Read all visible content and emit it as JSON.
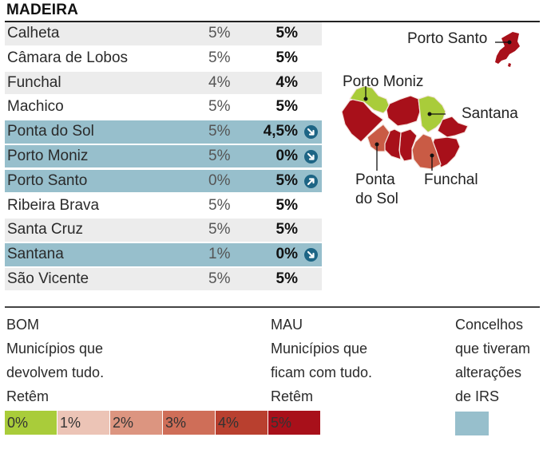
{
  "title": "MADEIRA",
  "rows": [
    {
      "name": "Calheta",
      "old": "5%",
      "new": "5%",
      "changed": false,
      "arrow": null
    },
    {
      "name": "Câmara de Lobos",
      "old": "5%",
      "new": "5%",
      "changed": false,
      "arrow": null
    },
    {
      "name": "Funchal",
      "old": "4%",
      "new": "4%",
      "changed": false,
      "arrow": null
    },
    {
      "name": "Machico",
      "old": "5%",
      "new": "5%",
      "changed": false,
      "arrow": null
    },
    {
      "name": "Ponta do Sol",
      "old": "5%",
      "new": "4,5%",
      "changed": true,
      "arrow": "down"
    },
    {
      "name": "Porto Moniz",
      "old": "5%",
      "new": "0%",
      "changed": true,
      "arrow": "down"
    },
    {
      "name": "Porto Santo",
      "old": "0%",
      "new": "5%",
      "changed": true,
      "arrow": "up"
    },
    {
      "name": "Ribeira Brava",
      "old": "5%",
      "new": "5%",
      "changed": false,
      "arrow": null
    },
    {
      "name": "Santa Cruz",
      "old": "5%",
      "new": "5%",
      "changed": false,
      "arrow": null
    },
    {
      "name": "Santana",
      "old": "1%",
      "new": "0%",
      "changed": true,
      "arrow": "down"
    },
    {
      "name": "São Vicente",
      "old": "5%",
      "new": "5%",
      "changed": false,
      "arrow": null
    }
  ],
  "map": {
    "labels": {
      "porto_santo": "Porto Santo",
      "porto_moniz": "Porto Moniz",
      "santana": "Santana",
      "ponta_do_sol_1": "Ponta",
      "ponta_do_sol_2": "do Sol",
      "funchal": "Funchal"
    }
  },
  "legend": {
    "bom": {
      "heading": "BOM",
      "line1": "Municípios que",
      "line2": "devolvem tudo.",
      "line3": "Retêm"
    },
    "mau": {
      "heading": "MAU",
      "line1": "Municípios que",
      "line2": "ficam com tudo.",
      "line3": "Retêm"
    },
    "irs": {
      "line1": "Concelhos",
      "line2": "que tiveram",
      "line3": "alterações",
      "line4": "de IRS"
    },
    "scale": [
      {
        "label": "0%",
        "color": "#a9cc3a"
      },
      {
        "label": "1%",
        "color": "#ecc4b6"
      },
      {
        "label": "2%",
        "color": "#dc9580"
      },
      {
        "label": "3%",
        "color": "#cf6e58"
      },
      {
        "label": "4%",
        "color": "#b9402f"
      },
      {
        "label": "5%",
        "color": "#a8101a"
      }
    ]
  },
  "colors": {
    "changed_row": "#97bfcc",
    "arrow": "#1d6585",
    "map_5pct": "#a8101a",
    "map_4pct": "#c95b45",
    "map_0pct": "#a9cc3a"
  }
}
